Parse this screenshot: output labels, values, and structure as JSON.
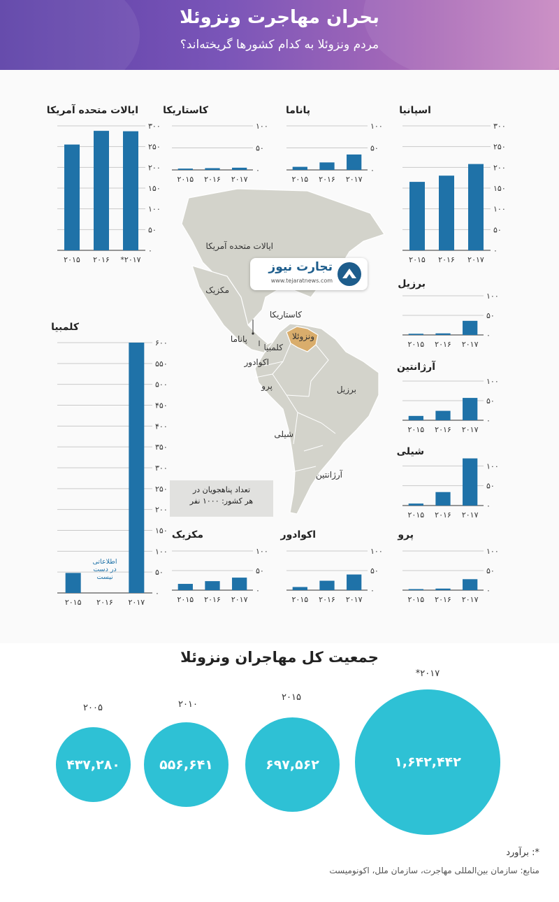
{
  "header": {
    "title": "بحران مهاجرت ونزوئلا",
    "subtitle": "مردم ونزوئلا به کدام کشورها گریخته‌اند؟"
  },
  "colors": {
    "bar": "#1f72a8",
    "bubble": "#2ec1d5",
    "map_land": "#d3d3cb",
    "venezuela": "#d9ad6c",
    "header_start": "#5b3fa6",
    "header_end": "#c889c2"
  },
  "logo": {
    "name": "تجارت نیوز",
    "url": "www.tejaratnews.com",
    "icon": "tejarat-logo-icon"
  },
  "map": {
    "labels": [
      "ایالات متحده آمریکا",
      "مکزیک",
      "کاستاریکا",
      "پاناما",
      "ونزوئلا",
      "کلمبیا",
      "اکوادور",
      "پرو",
      "برزیل",
      "شیلی",
      "آرژانتین"
    ],
    "legend_line1": "تعداد پناهجویان در",
    "legend_line2": "هر کشور:   ۱۰۰۰ نفر"
  },
  "chart_data": [
    {
      "type": "bar",
      "title": "ایالات متحده آمریکا",
      "categories": [
        "۲۰۱۵",
        "۲۰۱۶",
        "*۲۰۱۷"
      ],
      "values": [
        255,
        288,
        287
      ],
      "ylim": [
        0,
        300
      ],
      "ticks": [
        "۰",
        "۵۰",
        "۱۰۰",
        "۱۵۰",
        "۲۰۰",
        "۲۵۰",
        "۳۰۰"
      ]
    },
    {
      "type": "bar",
      "title": "کاستاریکا",
      "categories": [
        "۲۰۱۵",
        "۲۰۱۶",
        "۲۰۱۷"
      ],
      "values": [
        3,
        4,
        5
      ],
      "ylim": [
        0,
        100
      ],
      "ticks": [
        "۰",
        "۵۰",
        "۱۰۰"
      ]
    },
    {
      "type": "bar",
      "title": "پاناما",
      "categories": [
        "۲۰۱۵",
        "۲۰۱۶",
        "۲۰۱۷"
      ],
      "values": [
        7,
        17,
        35
      ],
      "ylim": [
        0,
        100
      ],
      "ticks": [
        "۰",
        "۵۰",
        "۱۰۰"
      ]
    },
    {
      "type": "bar",
      "title": "اسپانیا",
      "categories": [
        "۲۰۱۵",
        "۲۰۱۶",
        "۲۰۱۷"
      ],
      "values": [
        165,
        180,
        208
      ],
      "ylim": [
        0,
        300
      ],
      "ticks": [
        "۰",
        "۵۰",
        "۱۰۰",
        "۱۵۰",
        "۲۰۰",
        "۲۵۰",
        "۳۰۰"
      ]
    },
    {
      "type": "bar",
      "title": "برزیل",
      "categories": [
        "۲۰۱۵",
        "۲۰۱۶",
        "۲۰۱۷"
      ],
      "values": [
        3,
        4,
        36
      ],
      "ylim": [
        0,
        100
      ],
      "ticks": [
        "۰",
        "۵۰",
        "۱۰۰"
      ]
    },
    {
      "type": "bar",
      "title": "آرژانتین",
      "categories": [
        "۲۰۱۵",
        "۲۰۱۶",
        "۲۰۱۷"
      ],
      "values": [
        11,
        24,
        57
      ],
      "ylim": [
        0,
        100
      ],
      "ticks": [
        "۰",
        "۵۰",
        "۱۰۰"
      ]
    },
    {
      "type": "bar",
      "title": "شیلی",
      "categories": [
        "۲۰۱۵",
        "۲۰۱۶",
        "۲۰۱۷"
      ],
      "values": [
        5,
        34,
        119
      ],
      "ylim": [
        0,
        120
      ],
      "ticks": [
        "۰",
        "۵۰",
        "۱۰۰"
      ]
    },
    {
      "type": "bar",
      "title": "کلمبیا",
      "categories": [
        "۲۰۱۵",
        "۲۰۱۶",
        "۲۰۱۷"
      ],
      "values": [
        48,
        null,
        600
      ],
      "ylim": [
        0,
        600
      ],
      "ticks": [
        "۰",
        "۵۰",
        "۱۰۰",
        "۱۵۰",
        "۲۰۰",
        "۲۵۰",
        "۳۰۰",
        "۳۵۰",
        "۴۰۰",
        "۴۵۰",
        "۵۰۰",
        "۵۵۰",
        "۶۰۰"
      ],
      "no_data_label": "اطلاعاتی در دست نیست"
    },
    {
      "type": "bar",
      "title": "مکزیک",
      "categories": [
        "۲۰۱۵",
        "۲۰۱۶",
        "۲۰۱۷"
      ],
      "values": [
        16,
        23,
        32
      ],
      "ylim": [
        0,
        100
      ],
      "ticks": [
        "۰",
        "۵۰",
        "۱۰۰"
      ]
    },
    {
      "type": "bar",
      "title": "اکوادور",
      "categories": [
        "۲۰۱۵",
        "۲۰۱۶",
        "۲۰۱۷"
      ],
      "values": [
        8,
        24,
        40
      ],
      "ylim": [
        0,
        100
      ],
      "ticks": [
        "۰",
        "۵۰",
        "۱۰۰"
      ]
    },
    {
      "type": "bar",
      "title": "پرو",
      "categories": [
        "۲۰۱۵",
        "۲۰۱۶",
        "۲۰۱۷"
      ],
      "values": [
        2,
        4,
        28
      ],
      "ylim": [
        0,
        100
      ],
      "ticks": [
        "۰",
        "۵۰",
        "۱۰۰"
      ]
    }
  ],
  "totals": {
    "title": "جمعیت کل مهاجران ونزوئلا",
    "items": [
      {
        "year": "۲۰۰۵",
        "value": "۴۳۷,۲۸۰",
        "population": 437280
      },
      {
        "year": "۲۰۱۰",
        "value": "۵۵۶,۶۴۱",
        "population": 556641
      },
      {
        "year": "۲۰۱۵",
        "value": "۶۹۷,۵۶۲",
        "population": 697562
      },
      {
        "year": "*۲۰۱۷",
        "value": "۱,۶۴۲,۴۴۲",
        "population": 1642442
      }
    ]
  },
  "footer": {
    "note": "*: برآورد",
    "source": "منابع: سازمان بین‌المللی مهاجرت، سازمان ملل، اکونومیست"
  }
}
